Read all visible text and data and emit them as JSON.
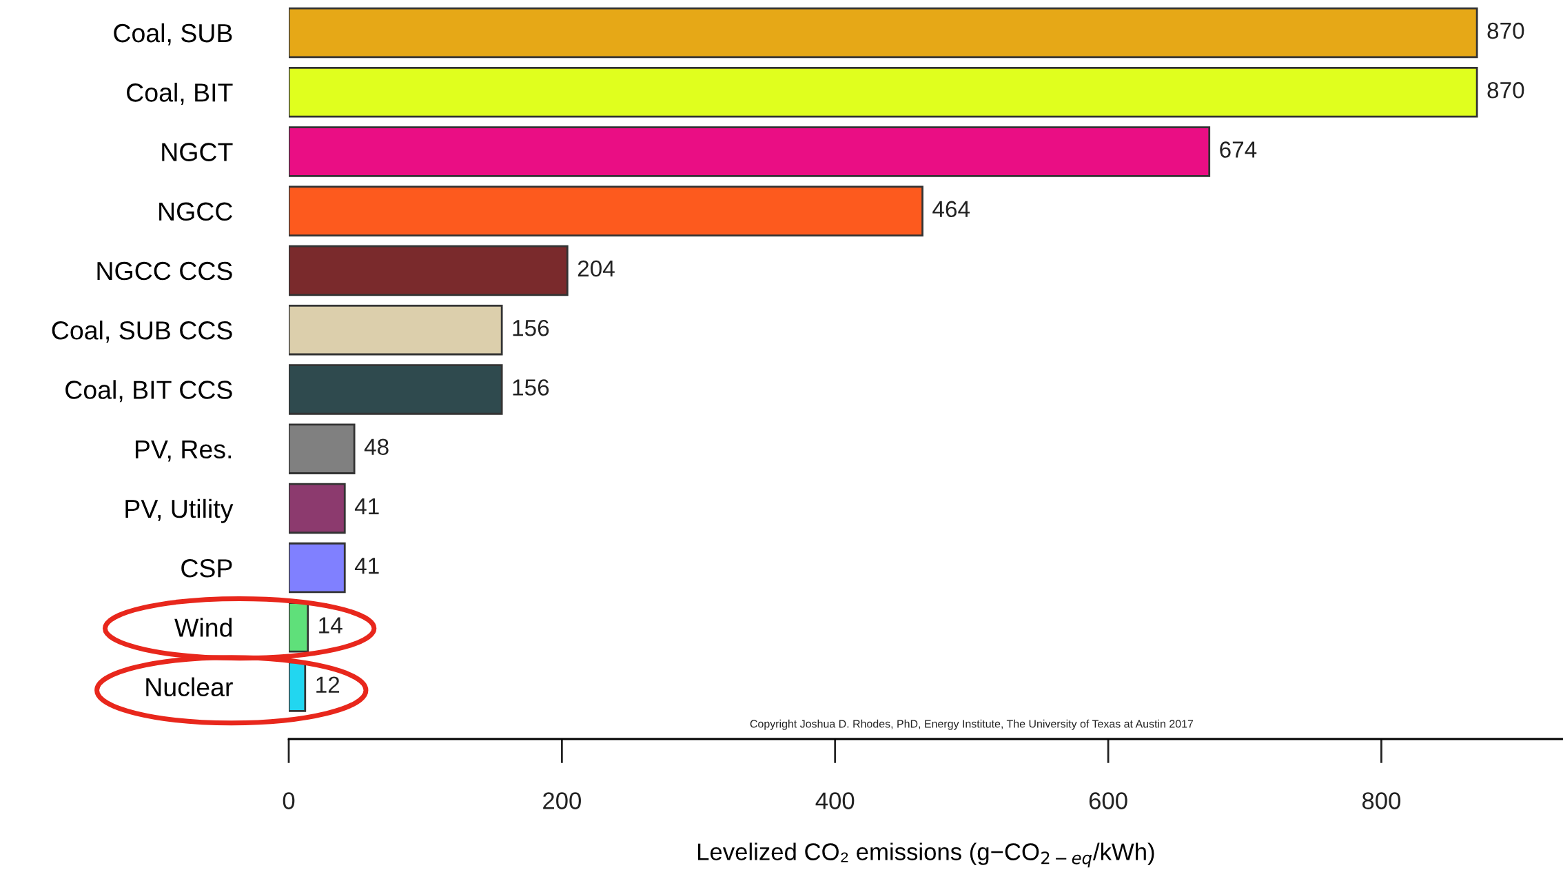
{
  "chart_data": {
    "type": "bar",
    "orientation": "horizontal",
    "categories": [
      "Coal, SUB",
      "Coal, BIT",
      "NGCT",
      "NGCC",
      "NGCC CCS",
      "Coal, SUB CCS",
      "Coal, BIT CCS",
      "PV, Res.",
      "PV, Utility",
      "CSP",
      "Wind",
      "Nuclear"
    ],
    "values": [
      870,
      870,
      674,
      464,
      204,
      156,
      156,
      48,
      41,
      41,
      14,
      12
    ],
    "colors": [
      "#e6a817",
      "#e0ff1e",
      "#ea0e84",
      "#fd5a1e",
      "#7a2a2c",
      "#dccfac",
      "#2f4a4e",
      "#808080",
      "#8c3a6e",
      "#8080ff",
      "#5fe07a",
      "#22d6f0"
    ],
    "xlim": [
      0,
      933
    ],
    "xticks": [
      0,
      200,
      400,
      600,
      800
    ],
    "xlabel": "Levelized CO₂ emissions (g−CO$_{2−eq}$/kWh)",
    "data_labels": true,
    "grid": false,
    "annotations": [
      "Copyright Joshua D. Rhodes, PhD, Energy Institute, The University of Texas at Austin 2017"
    ]
  }
}
